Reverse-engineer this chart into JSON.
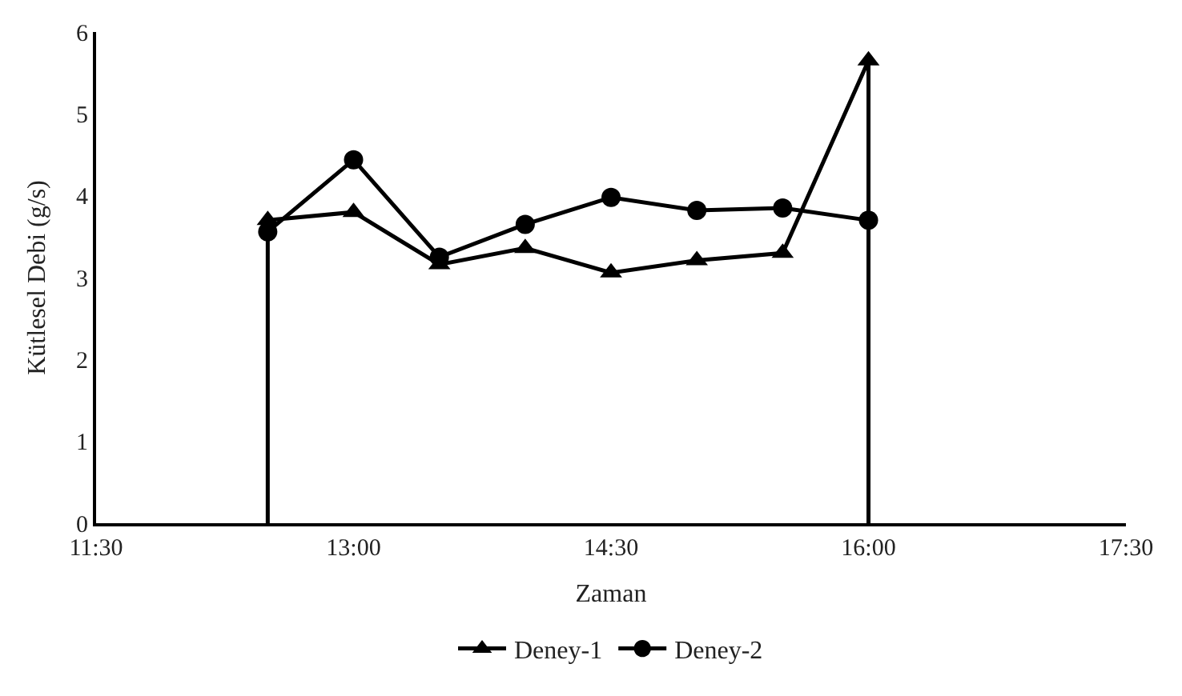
{
  "chart_data": {
    "type": "line",
    "xlabel": "Zaman",
    "ylabel": "Kütlesel Debi (g/s)",
    "xlim": [
      11.5,
      17.5
    ],
    "xticks": [
      {
        "value": 11.5,
        "label": "11:30"
      },
      {
        "value": 13,
        "label": "13:00"
      },
      {
        "value": 14.5,
        "label": "14:30"
      },
      {
        "value": 16,
        "label": "16:00"
      },
      {
        "value": 17.5,
        "label": "17:30"
      }
    ],
    "ylim": [
      0,
      6
    ],
    "yticks": [
      0,
      1,
      2,
      3,
      4,
      5,
      6
    ],
    "legend": "bottom",
    "series": [
      {
        "name": "Deney-1",
        "color": "#000000",
        "marker": "triangle",
        "x": [
          12.5,
          13,
          13.5,
          14,
          14.5,
          15,
          15.5,
          16,
          16
        ],
        "values": [
          3.7,
          3.8,
          3.16,
          3.36,
          3.06,
          3.21,
          3.3,
          5.65,
          0
        ]
      },
      {
        "name": "Deney-2",
        "color": "#000000",
        "marker": "circle",
        "x": [
          12.5,
          12.5,
          13,
          13.5,
          14,
          14.5,
          15,
          15.5,
          16
        ],
        "values": [
          0,
          3.56,
          4.44,
          3.25,
          3.65,
          3.98,
          3.82,
          3.85,
          3.7
        ]
      }
    ]
  }
}
